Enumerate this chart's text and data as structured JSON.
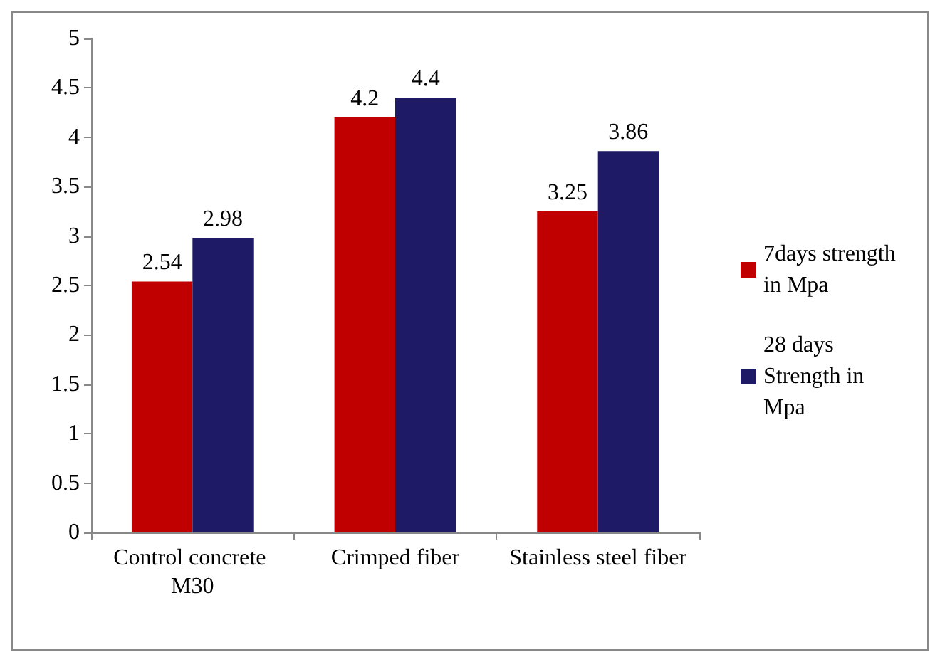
{
  "chart_data": {
    "type": "bar",
    "categories": [
      "Control concrete M30",
      "Crimped fiber",
      "Stainless steel fiber"
    ],
    "series": [
      {
        "name": "7days strength in Mpa",
        "color": "#c00000",
        "values": [
          2.54,
          4.2,
          3.25
        ]
      },
      {
        "name": "28 days Strength in Mpa",
        "color": "#1f1a66",
        "values": [
          2.98,
          4.4,
          3.86
        ]
      }
    ],
    "ylim": [
      0,
      5
    ],
    "yticks": [
      0,
      0.5,
      1,
      1.5,
      2,
      2.5,
      3,
      3.5,
      4,
      4.5,
      5
    ],
    "grid": false,
    "legend": "right",
    "data_labels": true
  }
}
